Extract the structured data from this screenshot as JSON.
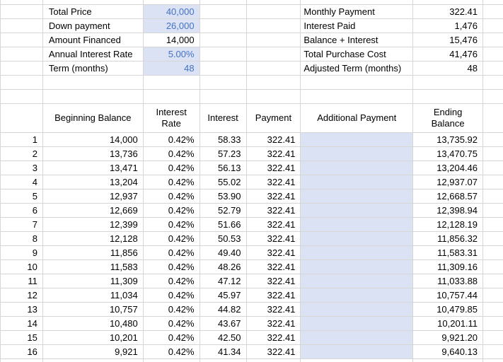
{
  "summary_left": {
    "rows": [
      {
        "label": "Total Price",
        "value": "40,000",
        "highlight": true
      },
      {
        "label": "Down payment",
        "value": "26,000",
        "highlight": true
      },
      {
        "label": "Amount Financed",
        "value": "14,000",
        "highlight": false
      },
      {
        "label": "Annual Interest Rate",
        "value": "5.00%",
        "highlight": true
      },
      {
        "label": "Term (months)",
        "value": "48",
        "highlight": true
      }
    ]
  },
  "summary_right": {
    "rows": [
      {
        "label": "Monthly Payment",
        "value": "322.41"
      },
      {
        "label": "Interest Paid",
        "value": "1,476"
      },
      {
        "label": "Balance + Interest",
        "value": "15,476"
      },
      {
        "label": "Total Purchase Cost",
        "value": "41,476"
      },
      {
        "label": "Adjusted Term (months)",
        "value": "48"
      }
    ]
  },
  "table": {
    "headers": [
      "Beginning Balance",
      "Interest Rate",
      "Interest",
      "Payment",
      "Additional Payment",
      "Ending Balance"
    ],
    "rows": [
      {
        "n": "1",
        "beginning_balance": "14,000",
        "interest_rate": "0.42%",
        "interest": "58.33",
        "payment": "322.41",
        "additional_payment": "",
        "ending_balance": "13,735.92"
      },
      {
        "n": "2",
        "beginning_balance": "13,736",
        "interest_rate": "0.42%",
        "interest": "57.23",
        "payment": "322.41",
        "additional_payment": "",
        "ending_balance": "13,470.75"
      },
      {
        "n": "3",
        "beginning_balance": "13,471",
        "interest_rate": "0.42%",
        "interest": "56.13",
        "payment": "322.41",
        "additional_payment": "",
        "ending_balance": "13,204.46"
      },
      {
        "n": "4",
        "beginning_balance": "13,204",
        "interest_rate": "0.42%",
        "interest": "55.02",
        "payment": "322.41",
        "additional_payment": "",
        "ending_balance": "12,937.07"
      },
      {
        "n": "5",
        "beginning_balance": "12,937",
        "interest_rate": "0.42%",
        "interest": "53.90",
        "payment": "322.41",
        "additional_payment": "",
        "ending_balance": "12,668.57"
      },
      {
        "n": "6",
        "beginning_balance": "12,669",
        "interest_rate": "0.42%",
        "interest": "52.79",
        "payment": "322.41",
        "additional_payment": "",
        "ending_balance": "12,398.94"
      },
      {
        "n": "7",
        "beginning_balance": "12,399",
        "interest_rate": "0.42%",
        "interest": "51.66",
        "payment": "322.41",
        "additional_payment": "",
        "ending_balance": "12,128.19"
      },
      {
        "n": "8",
        "beginning_balance": "12,128",
        "interest_rate": "0.42%",
        "interest": "50.53",
        "payment": "322.41",
        "additional_payment": "",
        "ending_balance": "11,856.32"
      },
      {
        "n": "9",
        "beginning_balance": "11,856",
        "interest_rate": "0.42%",
        "interest": "49.40",
        "payment": "322.41",
        "additional_payment": "",
        "ending_balance": "11,583.31"
      },
      {
        "n": "10",
        "beginning_balance": "11,583",
        "interest_rate": "0.42%",
        "interest": "48.26",
        "payment": "322.41",
        "additional_payment": "",
        "ending_balance": "11,309.16"
      },
      {
        "n": "11",
        "beginning_balance": "11,309",
        "interest_rate": "0.42%",
        "interest": "47.12",
        "payment": "322.41",
        "additional_payment": "",
        "ending_balance": "11,033.88"
      },
      {
        "n": "12",
        "beginning_balance": "11,034",
        "interest_rate": "0.42%",
        "interest": "45.97",
        "payment": "322.41",
        "additional_payment": "",
        "ending_balance": "10,757.44"
      },
      {
        "n": "13",
        "beginning_balance": "10,757",
        "interest_rate": "0.42%",
        "interest": "44.82",
        "payment": "322.41",
        "additional_payment": "",
        "ending_balance": "10,479.85"
      },
      {
        "n": "14",
        "beginning_balance": "10,480",
        "interest_rate": "0.42%",
        "interest": "43.67",
        "payment": "322.41",
        "additional_payment": "",
        "ending_balance": "10,201.11"
      },
      {
        "n": "15",
        "beginning_balance": "10,201",
        "interest_rate": "0.42%",
        "interest": "42.50",
        "payment": "322.41",
        "additional_payment": "",
        "ending_balance": "9,921.20"
      },
      {
        "n": "16",
        "beginning_balance": "9,921",
        "interest_rate": "0.42%",
        "interest": "41.34",
        "payment": "322.41",
        "additional_payment": "",
        "ending_balance": "9,640.13"
      }
    ]
  },
  "colors": {
    "highlight_fill": "#dbe2f3",
    "highlight_text": "#4472c4",
    "gridline": "#d6d6d6",
    "text": "#000000",
    "background": "#ffffff"
  }
}
